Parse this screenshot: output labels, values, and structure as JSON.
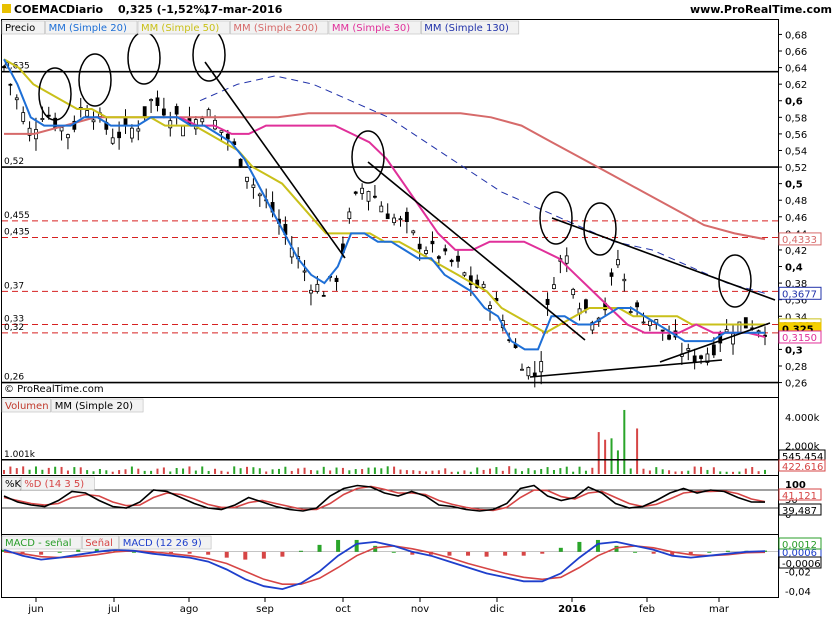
{
  "header": {
    "ticker": "COEMAC",
    "period": "Diario",
    "last": "0,325 (-1,52%)",
    "date": "17-mar-2016",
    "site": "www.ProRealTime.com"
  },
  "watermark": "© ProRealTime.com",
  "price_legend": [
    {
      "label": "Precio",
      "color": "#000000"
    },
    {
      "label": "MM (Simple 20)",
      "color": "#1e6fd6"
    },
    {
      "label": "MM (Simple 50)",
      "color": "#c9c01a"
    },
    {
      "label": "MM (Simple 200)",
      "color": "#d66a6a"
    },
    {
      "label": "MM (Simple 30)",
      "color": "#e0309a"
    },
    {
      "label": "MM (Simple 130)",
      "color": "#2233aa"
    }
  ],
  "volume_legend": [
    {
      "label": "Volumen",
      "color": "#c0392b"
    },
    {
      "label": "MM (Simple 20)",
      "color": "#000000"
    }
  ],
  "stoch_legend": [
    {
      "label": "%K",
      "color": "#000000"
    },
    {
      "label": "%D (14 3 5)",
      "color": "#d64545"
    }
  ],
  "macd_legend": [
    {
      "label": "MACD - señal",
      "color": "#2a9d2a"
    },
    {
      "label": "Señal",
      "color": "#d64545"
    },
    {
      "label": "MACD (12 26 9)",
      "color": "#1e3fcc"
    }
  ],
  "months": [
    "jun",
    "jul",
    "ago",
    "sep",
    "oct",
    "nov",
    "dic",
    "2016",
    "feb",
    "mar"
  ],
  "chart_data": [
    {
      "type": "candlestick",
      "panel": "price",
      "ylim": [
        0.245,
        0.695
      ],
      "y_ticks": [
        "0,68",
        "0,66",
        "0,64",
        "0,62",
        "0,6",
        "0,58",
        "0,56",
        "0,54",
        "0,52",
        "0,5",
        "0,48",
        "0,46",
        "0,44",
        "0,42",
        "0,4",
        "0,38",
        "0,36",
        "0,34",
        "0,32",
        "0,3",
        "0,28",
        "0,26"
      ],
      "y_tick_values": [
        0.68,
        0.66,
        0.64,
        0.62,
        0.6,
        0.58,
        0.56,
        0.54,
        0.52,
        0.5,
        0.48,
        0.46,
        0.44,
        0.42,
        0.4,
        0.38,
        0.36,
        0.34,
        0.32,
        0.3,
        0.28,
        0.26
      ],
      "horizontal_levels": [
        {
          "value": 0.635,
          "label": "0,635",
          "style": "solid"
        },
        {
          "value": 0.52,
          "label": "0,52",
          "style": "solid"
        },
        {
          "value": 0.455,
          "label": "0,455",
          "style": "dashed"
        },
        {
          "value": 0.435,
          "label": "0,435",
          "style": "dashed"
        },
        {
          "value": 0.37,
          "label": "0,37",
          "style": "dashed"
        },
        {
          "value": 0.33,
          "label": "0,33",
          "style": "dashed"
        },
        {
          "value": 0.32,
          "label": "0,32",
          "style": "dashed"
        },
        {
          "value": 0.26,
          "label": "0,26",
          "style": "solid"
        }
      ],
      "price_tags": [
        {
          "value": 0.4333,
          "label": "0,4333",
          "color": "#d66a6a"
        },
        {
          "value": 0.3677,
          "label": "0,3677",
          "color": "#2233aa"
        },
        {
          "value": 0.3296,
          "label": "0,3296",
          "color": "#c9c01a"
        },
        {
          "value": 0.325,
          "label": "0,325",
          "color": "#e8c000"
        },
        {
          "value": 0.315,
          "label": "0,3150",
          "color": "#e0309a"
        }
      ],
      "close_path": [
        0.64,
        0.6,
        0.56,
        0.59,
        0.57,
        0.56,
        0.6,
        0.58,
        0.56,
        0.56,
        0.57,
        0.6,
        0.59,
        0.58,
        0.57,
        0.59,
        0.57,
        0.55,
        0.52,
        0.49,
        0.47,
        0.44,
        0.41,
        0.38,
        0.37,
        0.39,
        0.47,
        0.5,
        0.48,
        0.46,
        0.45,
        0.43,
        0.42,
        0.41,
        0.4,
        0.38,
        0.37,
        0.35,
        0.31,
        0.28,
        0.265,
        0.38,
        0.42,
        0.36,
        0.34,
        0.35,
        0.41,
        0.35,
        0.34,
        0.33,
        0.31,
        0.295,
        0.29,
        0.3,
        0.32,
        0.33,
        0.33,
        0.325
      ],
      "ma20": [
        0.65,
        0.62,
        0.58,
        0.57,
        0.57,
        0.57,
        0.58,
        0.58,
        0.57,
        0.57,
        0.57,
        0.58,
        0.58,
        0.58,
        0.57,
        0.57,
        0.56,
        0.55,
        0.53,
        0.5,
        0.47,
        0.44,
        0.41,
        0.39,
        0.38,
        0.4,
        0.44,
        0.44,
        0.43,
        0.43,
        0.42,
        0.41,
        0.41,
        0.39,
        0.38,
        0.37,
        0.35,
        0.34,
        0.31,
        0.3,
        0.3,
        0.34,
        0.34,
        0.33,
        0.33,
        0.34,
        0.35,
        0.35,
        0.34,
        0.33,
        0.32,
        0.31,
        0.31,
        0.31,
        0.32,
        0.32,
        0.32,
        0.32
      ],
      "ma50": [
        0.65,
        0.64,
        0.62,
        0.61,
        0.6,
        0.59,
        0.59,
        0.58,
        0.58,
        0.58,
        0.58,
        0.57,
        0.57,
        0.57,
        0.56,
        0.55,
        0.54,
        0.52,
        0.51,
        0.5,
        0.48,
        0.46,
        0.44,
        0.44,
        0.44,
        0.44,
        0.43,
        0.43,
        0.42,
        0.41,
        0.4,
        0.39,
        0.38,
        0.37,
        0.35,
        0.34,
        0.33,
        0.32,
        0.33,
        0.34,
        0.35,
        0.35,
        0.35,
        0.34,
        0.34,
        0.34,
        0.34,
        0.33,
        0.33,
        0.33,
        0.33,
        0.33,
        0.33
      ],
      "ma200": [
        0.56,
        0.56,
        0.57,
        0.58,
        0.58,
        0.58,
        0.58,
        0.58,
        0.58,
        0.58,
        0.585,
        0.585,
        0.585,
        0.585,
        0.585,
        0.585,
        0.58,
        0.57,
        0.55,
        0.53,
        0.51,
        0.49,
        0.47,
        0.45,
        0.44,
        0.433
      ],
      "ma30": [
        0.58,
        0.57,
        0.57,
        0.56,
        0.56,
        0.57,
        0.57,
        0.57,
        0.57,
        0.57,
        0.56,
        0.55,
        0.53,
        0.5,
        0.47,
        0.44,
        0.42,
        0.42,
        0.43,
        0.43,
        0.43,
        0.42,
        0.41,
        0.39,
        0.37,
        0.35,
        0.33,
        0.32,
        0.32,
        0.32,
        0.33,
        0.32,
        0.32,
        0.32,
        0.315
      ],
      "ma130": [
        0.6,
        0.62,
        0.63,
        0.62,
        0.6,
        0.58,
        0.55,
        0.52,
        0.49,
        0.47,
        0.45,
        0.43,
        0.42,
        0.4,
        0.38,
        0.3677
      ]
    },
    {
      "type": "bar",
      "panel": "volume",
      "y_ticks": [
        "4.000k",
        "2.000k"
      ],
      "y_tick_values": [
        4000,
        2000
      ],
      "ylim": [
        0,
        5200
      ],
      "level": {
        "value": 1001,
        "label": "1.001k"
      },
      "tags": [
        {
          "label": "545.454",
          "color": "#000000"
        },
        {
          "label": "422.616",
          "color": "#d64545"
        }
      ]
    },
    {
      "type": "line",
      "panel": "stochastic",
      "ylim": [
        0,
        100
      ],
      "y_ticks": [
        "100",
        "50",
        "0"
      ],
      "y_tick_values": [
        100,
        50,
        0
      ],
      "levels": [
        80,
        20
      ],
      "tags": [
        {
          "label": "41,121",
          "color": "#d64545"
        },
        {
          "label": "39,487",
          "color": "#000000"
        }
      ],
      "k": [
        60,
        40,
        30,
        25,
        45,
        75,
        70,
        45,
        25,
        20,
        40,
        80,
        75,
        55,
        35,
        20,
        15,
        30,
        55,
        40,
        25,
        15,
        10,
        20,
        60,
        85,
        95,
        90,
        70,
        60,
        75,
        60,
        30,
        25,
        15,
        10,
        15,
        35,
        85,
        95,
        60,
        45,
        55,
        90,
        70,
        35,
        20,
        25,
        45,
        70,
        85,
        70,
        80,
        75,
        55,
        40,
        39.5
      ],
      "d": [
        55,
        45,
        35,
        30,
        35,
        55,
        65,
        60,
        40,
        28,
        30,
        55,
        70,
        65,
        50,
        32,
        22,
        22,
        38,
        45,
        35,
        25,
        15,
        15,
        35,
        65,
        85,
        92,
        82,
        70,
        70,
        65,
        45,
        32,
        22,
        15,
        12,
        22,
        55,
        80,
        78,
        58,
        50,
        70,
        75,
        55,
        35,
        25,
        32,
        50,
        70,
        75,
        75,
        77,
        68,
        50,
        41
      ]
    },
    {
      "type": "line",
      "panel": "macd",
      "ylim": [
        -0.045,
        0.015
      ],
      "y_ticks": [
        "0",
        "-0,02",
        "-0,04"
      ],
      "y_tick_values": [
        0,
        -0.02,
        -0.04
      ],
      "tags": [
        {
          "label": "0,0006",
          "color": "#1e3fcc"
        },
        {
          "label": "-0,0006",
          "color": "#000000"
        },
        {
          "label": "0,0012",
          "color": "#2a9d2a"
        }
      ],
      "macd": [
        0.002,
        -0.004,
        -0.008,
        -0.006,
        -0.003,
        0,
        0.002,
        0.001,
        -0.002,
        -0.004,
        -0.006,
        -0.01,
        -0.018,
        -0.028,
        -0.035,
        -0.038,
        -0.032,
        -0.02,
        -0.004,
        0.008,
        0.01,
        0.006,
        0,
        -0.004,
        -0.01,
        -0.016,
        -0.022,
        -0.026,
        -0.03,
        -0.03,
        -0.022,
        -0.006,
        0.008,
        0.01,
        0.006,
        0.002,
        -0.004,
        -0.006,
        -0.004,
        -0.002,
        0,
        0.0006
      ],
      "signal": [
        0,
        -0.002,
        -0.005,
        -0.006,
        -0.005,
        -0.003,
        0,
        0.001,
        0,
        -0.002,
        -0.004,
        -0.007,
        -0.012,
        -0.02,
        -0.028,
        -0.033,
        -0.033,
        -0.027,
        -0.016,
        -0.004,
        0.004,
        0.006,
        0.003,
        -0.001,
        -0.006,
        -0.012,
        -0.017,
        -0.022,
        -0.026,
        -0.028,
        -0.026,
        -0.016,
        -0.004,
        0.004,
        0.006,
        0.004,
        0,
        -0.003,
        -0.004,
        -0.003,
        -0.001,
        -0.0006
      ]
    }
  ]
}
